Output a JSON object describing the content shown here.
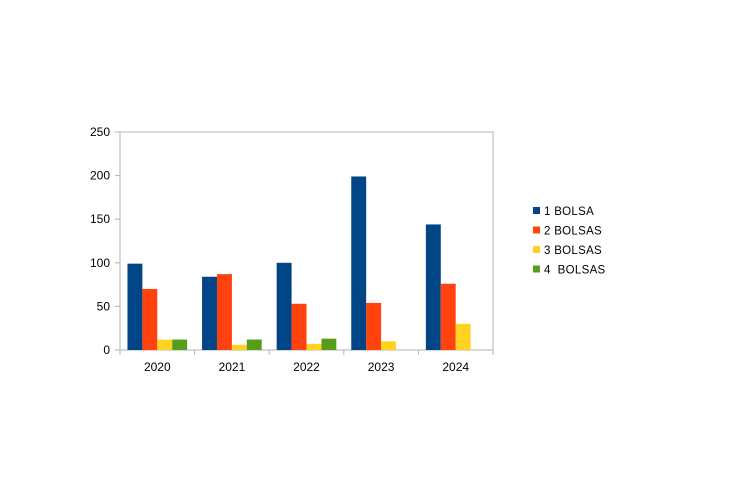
{
  "chart_data": {
    "type": "bar",
    "categories": [
      "2020",
      "2021",
      "2022",
      "2023",
      "2024"
    ],
    "series": [
      {
        "name": "1 BOLSA",
        "values": [
          99,
          84,
          100,
          199,
          144
        ],
        "color": "#004586"
      },
      {
        "name": "2 BOLSAS",
        "values": [
          70,
          87,
          53,
          54,
          76
        ],
        "color": "#ff420e"
      },
      {
        "name": "3 BOLSAS",
        "values": [
          12,
          6,
          7,
          10,
          30
        ],
        "color": "#ffd320"
      },
      {
        "name": "4  BOLSAS",
        "values": [
          12,
          12,
          13,
          0,
          0
        ],
        "color": "#579d1c"
      }
    ],
    "yticks": [
      "0",
      "50",
      "100",
      "150",
      "200",
      "250"
    ],
    "ylim": [
      0,
      250
    ],
    "grid": false,
    "legend_position": "right"
  }
}
